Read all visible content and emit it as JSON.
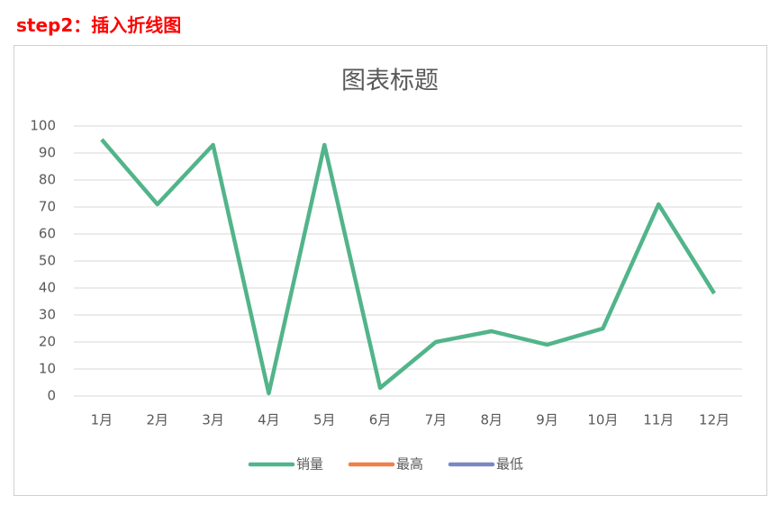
{
  "heading": "step2：插入折线图",
  "chart_data": {
    "type": "line",
    "title": "图表标题",
    "categories": [
      "1月",
      "2月",
      "3月",
      "4月",
      "5月",
      "6月",
      "7月",
      "8月",
      "9月",
      "10月",
      "11月",
      "12月"
    ],
    "series": [
      {
        "name": "销量",
        "color": "#52b48a",
        "values": [
          95,
          71,
          93,
          1,
          93,
          3,
          20,
          24,
          19,
          25,
          71,
          38
        ]
      },
      {
        "name": "最高",
        "color": "#f27e4a",
        "values": [
          null,
          null,
          null,
          null,
          null,
          null,
          null,
          null,
          null,
          null,
          null,
          null
        ]
      },
      {
        "name": "最低",
        "color": "#7a88c2",
        "values": [
          null,
          null,
          null,
          null,
          null,
          null,
          null,
          null,
          null,
          null,
          null,
          null
        ]
      }
    ],
    "ylim": [
      0,
      100
    ],
    "yticks": [
      0,
      10,
      20,
      30,
      40,
      50,
      60,
      70,
      80,
      90,
      100
    ],
    "grid": true,
    "legend": "bottom"
  }
}
